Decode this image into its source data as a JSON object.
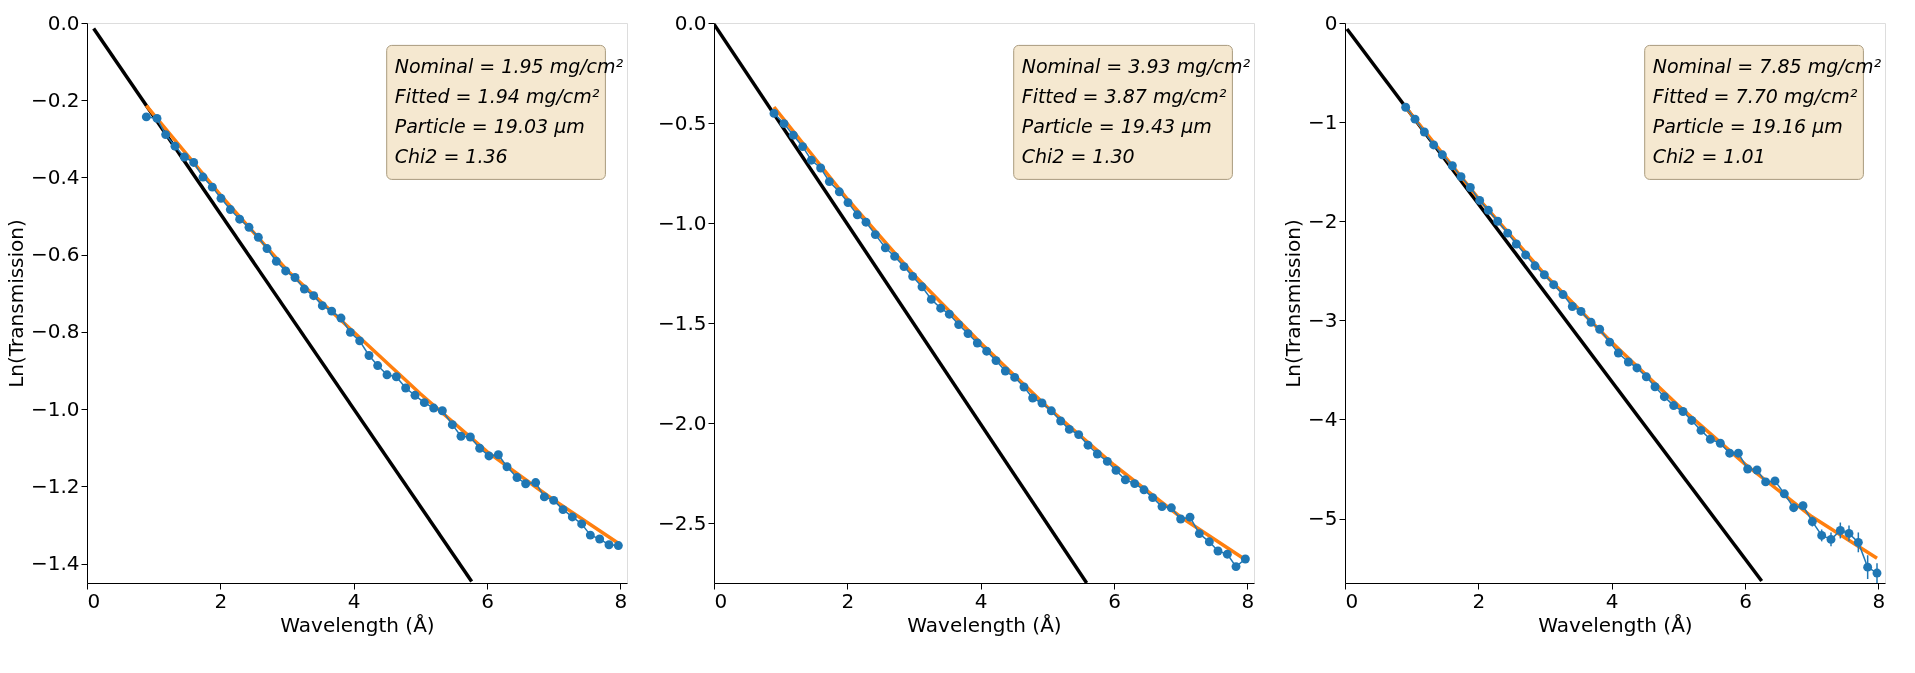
{
  "chart_data": [
    {
      "type": "line",
      "xlabel": "Wavelength (Å)",
      "ylabel": "Ln(Transmission)",
      "xlim": [
        0,
        8.1
      ],
      "ylim": [
        -1.45,
        0
      ],
      "xticks": [
        0,
        2,
        4,
        6,
        8
      ],
      "yticks": [
        {
          "value": 0,
          "label": "0.0"
        },
        {
          "value": -0.2,
          "label": "−0.2"
        },
        {
          "value": -0.4,
          "label": "−0.4"
        },
        {
          "value": -0.6,
          "label": "−0.6"
        },
        {
          "value": -0.8,
          "label": "−0.8"
        },
        {
          "value": -1.0,
          "label": "−1.0"
        },
        {
          "value": -1.2,
          "label": "−1.2"
        },
        {
          "value": -1.4,
          "label": "−1.4"
        }
      ],
      "grid": false,
      "annotations": [
        "Nominal = 1.95 mg/cm²",
        "Fitted = 1.94 mg/cm²",
        "Particle = 19.03 μm",
        "Chi2 = 1.36"
      ],
      "series": [
        {
          "color": "#000000",
          "marker": "none",
          "x": [
            0.1,
            5.77
          ],
          "values": [
            -0.014,
            -1.446
          ]
        },
        {
          "color": "#ff7f0e",
          "marker": "none",
          "x": [
            0.89,
            2,
            3,
            4,
            5,
            6,
            7,
            7.97
          ],
          "values": [
            -0.214,
            -0.445,
            -0.64,
            -0.8,
            -0.96,
            -1.11,
            -1.235,
            -1.347
          ]
        },
        {
          "color": "#1f77b4",
          "marker": "circle",
          "x": [
            0.89,
            1.05,
            1.18,
            1.32,
            1.46,
            1.6,
            1.74,
            1.88,
            2.01,
            2.15,
            2.29,
            2.43,
            2.57,
            2.7,
            2.84,
            2.98,
            3.12,
            3.26,
            3.4,
            3.53,
            3.67,
            3.81,
            3.95,
            4.09,
            4.23,
            4.36,
            4.5,
            4.64,
            4.78,
            4.92,
            5.06,
            5.2,
            5.33,
            5.48,
            5.61,
            5.75,
            5.89,
            6.03,
            6.17,
            6.3,
            6.45,
            6.58,
            6.73,
            6.86,
            7.0,
            7.14,
            7.28,
            7.42,
            7.55,
            7.69,
            7.83,
            7.97
          ],
          "values": [
            -0.243,
            -0.247,
            -0.289,
            -0.319,
            -0.347,
            -0.361,
            -0.399,
            -0.425,
            -0.454,
            -0.483,
            -0.508,
            -0.529,
            -0.555,
            -0.584,
            -0.617,
            -0.642,
            -0.659,
            -0.689,
            -0.706,
            -0.732,
            -0.746,
            -0.764,
            -0.801,
            -0.823,
            -0.861,
            -0.887,
            -0.911,
            -0.916,
            -0.945,
            -0.964,
            -0.983,
            -0.997,
            -1.004,
            -1.04,
            -1.07,
            -1.072,
            -1.101,
            -1.121,
            -1.118,
            -1.149,
            -1.177,
            -1.193,
            -1.19,
            -1.227,
            -1.236,
            -1.26,
            -1.279,
            -1.297,
            -1.326,
            -1.336,
            -1.351,
            -1.353
          ]
        }
      ]
    },
    {
      "type": "line",
      "xlabel": "Wavelength (Å)",
      "xlim": [
        0,
        8.1
      ],
      "ylim": [
        -2.8,
        0
      ],
      "xticks": [
        0,
        2,
        4,
        6,
        8
      ],
      "yticks": [
        {
          "value": 0,
          "label": "0.0"
        },
        {
          "value": -0.5,
          "label": "−0.5"
        },
        {
          "value": -1.0,
          "label": "−1.0"
        },
        {
          "value": -1.5,
          "label": "−1.5"
        },
        {
          "value": -2.0,
          "label": "−2.0"
        },
        {
          "value": -2.5,
          "label": "−2.5"
        }
      ],
      "grid": false,
      "annotations": [
        "Nominal = 3.93 mg/cm²",
        "Fitted = 3.87 mg/cm²",
        "Particle = 19.43 μm",
        "Chi2 = 1.30"
      ],
      "series": [
        {
          "color": "#000000",
          "marker": "none",
          "x": [
            0,
            5.59
          ],
          "values": [
            -0.006,
            -2.8
          ]
        },
        {
          "color": "#ff7f0e",
          "marker": "none",
          "x": [
            0.9,
            2,
            3,
            4,
            5,
            6,
            7,
            8
          ],
          "values": [
            -0.42,
            -0.88,
            -1.26,
            -1.6,
            -1.92,
            -2.21,
            -2.47,
            -2.69
          ]
        },
        {
          "color": "#1f77b4",
          "marker": "circle",
          "x": [
            0.9,
            1.05,
            1.19,
            1.33,
            1.46,
            1.6,
            1.73,
            1.88,
            2.01,
            2.15,
            2.28,
            2.42,
            2.57,
            2.71,
            2.85,
            2.98,
            3.12,
            3.26,
            3.4,
            3.53,
            3.67,
            3.81,
            3.95,
            4.09,
            4.23,
            4.37,
            4.51,
            4.65,
            4.78,
            4.92,
            5.06,
            5.2,
            5.33,
            5.47,
            5.61,
            5.75,
            5.9,
            6.03,
            6.17,
            6.31,
            6.45,
            6.58,
            6.72,
            6.86,
            7.0,
            7.14,
            7.28,
            7.43,
            7.56,
            7.7,
            7.83,
            7.97
          ],
          "values": [
            -0.452,
            -0.503,
            -0.561,
            -0.618,
            -0.686,
            -0.725,
            -0.793,
            -0.844,
            -0.898,
            -0.959,
            -0.996,
            -1.058,
            -1.124,
            -1.167,
            -1.218,
            -1.267,
            -1.319,
            -1.382,
            -1.426,
            -1.456,
            -1.508,
            -1.553,
            -1.6,
            -1.641,
            -1.688,
            -1.74,
            -1.772,
            -1.82,
            -1.875,
            -1.9,
            -1.939,
            -1.99,
            -2.032,
            -2.058,
            -2.111,
            -2.155,
            -2.192,
            -2.237,
            -2.284,
            -2.303,
            -2.334,
            -2.373,
            -2.418,
            -2.424,
            -2.48,
            -2.471,
            -2.553,
            -2.594,
            -2.64,
            -2.656,
            -2.718,
            -2.68
          ]
        }
      ]
    },
    {
      "type": "line",
      "xlabel": "Wavelength (Å)",
      "ylabel": "Ln(Transmission)",
      "xlim": [
        0,
        8.1
      ],
      "ylim": [
        -5.65,
        0
      ],
      "xticks": [
        0,
        2,
        4,
        6,
        8
      ],
      "yticks": [
        0,
        {
          "value": -1,
          "label": "−1"
        },
        {
          "value": -2,
          "label": "−2"
        },
        {
          "value": -3,
          "label": "−3"
        },
        {
          "value": -4,
          "label": "−4"
        },
        {
          "value": -5,
          "label": "−5"
        }
      ],
      "grid": false,
      "annotations": [
        "Nominal = 7.85 mg/cm²",
        "Fitted = 7.70 mg/cm²",
        "Particle = 19.16 μm",
        "Chi2 = 1.01"
      ],
      "series": [
        {
          "color": "#000000",
          "marker": "none",
          "x": [
            0.03,
            6.25
          ],
          "values": [
            -0.06,
            -5.63
          ]
        },
        {
          "color": "#ff7f0e",
          "marker": "none",
          "x": [
            0.91,
            2,
            3,
            4,
            5,
            6,
            7,
            7.98
          ],
          "values": [
            -0.85,
            -1.77,
            -2.54,
            -3.22,
            -3.86,
            -4.45,
            -4.98,
            -5.4
          ]
        },
        {
          "color": "#1f77b4",
          "marker": "circle",
          "x": [
            0.91,
            1.05,
            1.19,
            1.33,
            1.46,
            1.61,
            1.74,
            1.88,
            2.02,
            2.15,
            2.29,
            2.44,
            2.57,
            2.71,
            2.85,
            2.99,
            3.13,
            3.27,
            3.41,
            3.54,
            3.69,
            3.82,
            3.97,
            4.1,
            4.25,
            4.38,
            4.52,
            4.65,
            4.79,
            4.93,
            5.07,
            5.2,
            5.34,
            5.48,
            5.63,
            5.77,
            5.9,
            6.04,
            6.18,
            6.31,
            6.45,
            6.59,
            6.73,
            6.87,
            7.01,
            7.15,
            7.29,
            7.43,
            7.56,
            7.7,
            7.84,
            7.98
          ],
          "values": [
            -0.85,
            -0.97,
            -1.1,
            -1.23,
            -1.33,
            -1.44,
            -1.55,
            -1.66,
            -1.79,
            -1.89,
            -2.0,
            -2.12,
            -2.23,
            -2.34,
            -2.45,
            -2.54,
            -2.64,
            -2.74,
            -2.86,
            -2.91,
            -3.02,
            -3.09,
            -3.22,
            -3.33,
            -3.42,
            -3.48,
            -3.57,
            -3.67,
            -3.77,
            -3.86,
            -3.92,
            -4.01,
            -4.11,
            -4.2,
            -4.24,
            -4.34,
            -4.34,
            -4.5,
            -4.51,
            -4.63,
            -4.62,
            -4.75,
            -4.89,
            -4.87,
            -5.03,
            -5.17,
            -5.21,
            -5.12,
            -5.15,
            -5.24,
            -5.49,
            -5.55
          ],
          "errors": [
            null,
            null,
            null,
            null,
            null,
            null,
            null,
            null,
            null,
            null,
            null,
            null,
            null,
            null,
            null,
            null,
            null,
            null,
            null,
            null,
            null,
            null,
            null,
            null,
            null,
            null,
            null,
            null,
            null,
            null,
            null,
            null,
            null,
            null,
            null,
            null,
            null,
            null,
            null,
            null,
            null,
            null,
            0.04,
            0.04,
            0.05,
            0.06,
            0.07,
            0.08,
            0.08,
            0.1,
            0.12,
            0.1
          ]
        }
      ]
    }
  ]
}
